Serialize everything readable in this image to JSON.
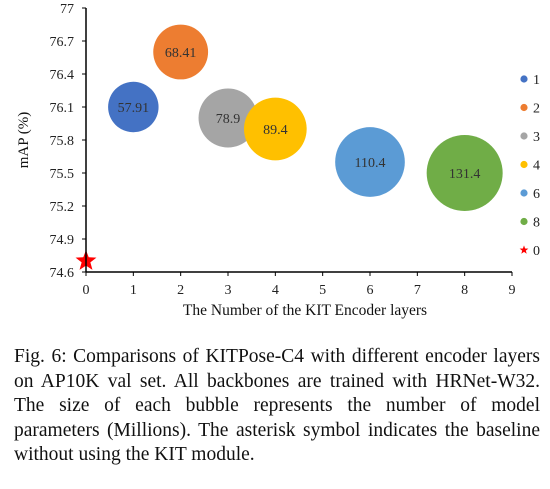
{
  "chart_data": {
    "type": "scatter",
    "subtype": "bubble",
    "title": "",
    "xlabel": "The Number of the KIT Encoder layers",
    "ylabel": "mAP (%)",
    "xlim": [
      0,
      9
    ],
    "ylim": [
      74.6,
      77
    ],
    "x_ticks": [
      "0",
      "1",
      "2",
      "3",
      "4",
      "5",
      "6",
      "7",
      "8",
      "9"
    ],
    "y_ticks": [
      "74.6",
      "74.9",
      "75.2",
      "75.5",
      "75.8",
      "76.1",
      "76.4",
      "76.7",
      "77"
    ],
    "grid": false,
    "legend_position": "right",
    "series": [
      {
        "name": "1",
        "x": 1,
        "y": 76.1,
        "size": 57.91,
        "label": "57.91",
        "color": "#4472c4",
        "marker": "circle"
      },
      {
        "name": "2",
        "x": 2,
        "y": 76.6,
        "size": 68.41,
        "label": "68.41",
        "color": "#ed7d31",
        "marker": "circle"
      },
      {
        "name": "3",
        "x": 3,
        "y": 76.0,
        "size": 78.9,
        "label": "78.9",
        "color": "#a5a5a5",
        "marker": "circle"
      },
      {
        "name": "4",
        "x": 4,
        "y": 75.9,
        "size": 89.4,
        "label": "89.4",
        "color": "#ffc000",
        "marker": "circle"
      },
      {
        "name": "6",
        "x": 6,
        "y": 75.6,
        "size": 110.4,
        "label": "110.4",
        "color": "#5b9bd5",
        "marker": "circle"
      },
      {
        "name": "8",
        "x": 8,
        "y": 75.5,
        "size": 131.4,
        "label": "131.4",
        "color": "#70ad47",
        "marker": "circle"
      },
      {
        "name": "0",
        "x": 0,
        "y": 74.7,
        "size": null,
        "label": "",
        "color": "#ff0000",
        "marker": "star"
      }
    ]
  },
  "caption": "Fig. 6: Comparisons of KITPose-C4 with different encoder layers on AP10K val set. All backbones are trained with HRNet-W32. The size of each bubble represents the number of model parameters (Millions). The asterisk symbol indicates the baseline without using the KIT module."
}
